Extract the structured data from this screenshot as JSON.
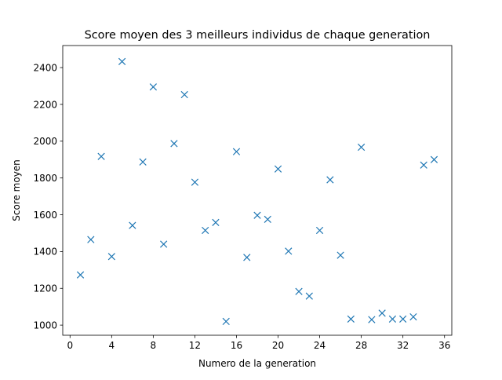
{
  "chart_data": {
    "type": "scatter",
    "title": "Score moyen des 3 meilleurs individus de chaque generation",
    "xlabel": "Numero de la generation",
    "ylabel": "Score moyen",
    "xlim": [
      -0.7,
      36.7
    ],
    "ylim": [
      945,
      2520
    ],
    "xticks": [
      0,
      4,
      8,
      12,
      16,
      20,
      24,
      28,
      32,
      36
    ],
    "yticks": [
      1000,
      1200,
      1400,
      1600,
      1800,
      2000,
      2200,
      2400
    ],
    "grid": false,
    "marker": "x",
    "color": "#1f77b4",
    "series": [
      {
        "x": [
          1,
          2,
          3,
          4,
          5,
          6,
          7,
          8,
          9,
          10,
          11,
          12,
          13,
          14,
          15,
          16,
          17,
          18,
          19,
          20,
          21,
          22,
          23,
          24,
          25,
          26,
          27,
          28,
          29,
          30,
          31,
          32,
          33,
          34,
          35
        ],
        "y": [
          1273,
          1465,
          1917,
          1373,
          2433,
          1542,
          1887,
          2295,
          1440,
          1987,
          2253,
          1777,
          1515,
          1558,
          1020,
          1943,
          1368,
          1597,
          1575,
          1849,
          1402,
          1183,
          1158,
          1515,
          1790,
          1380,
          1033,
          1967,
          1030,
          1065,
          1033,
          1033,
          1045,
          1870,
          1900
        ]
      }
    ]
  }
}
